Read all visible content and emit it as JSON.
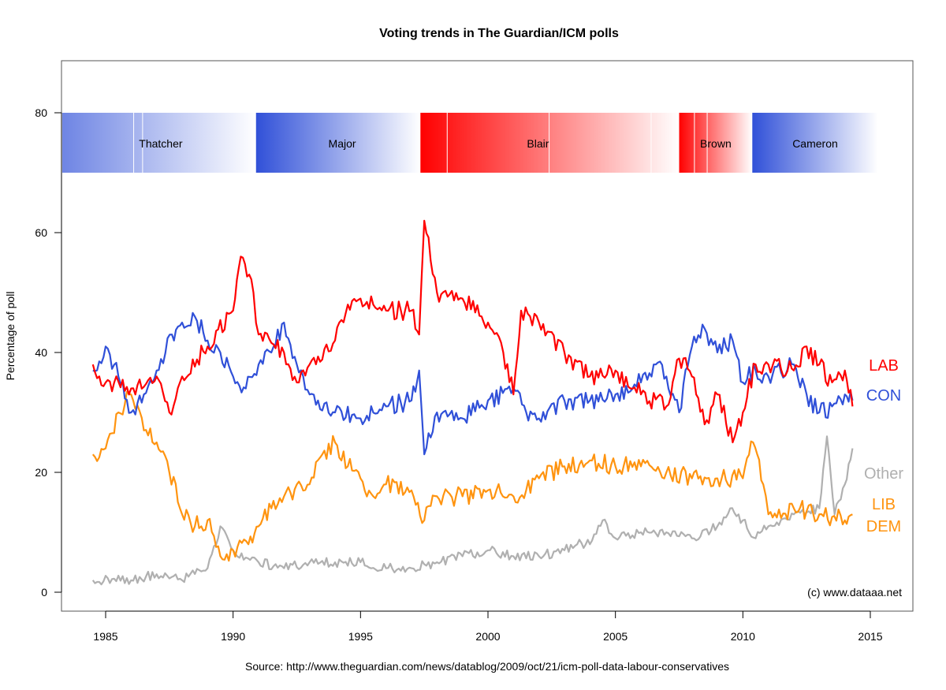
{
  "chart_data": {
    "type": "line",
    "title": "Voting trends in The Guardian/ICM polls",
    "xlabel": "",
    "ylabel": "Percentage of poll",
    "xlim": [
      1983.3,
      2016.7
    ],
    "ylim": [
      -3,
      88
    ],
    "x_ticks": [
      1985,
      1990,
      1995,
      2000,
      2005,
      2010,
      2015
    ],
    "y_ticks": [
      0,
      20,
      40,
      60,
      80
    ],
    "grid": false,
    "source": "Source: http://www.theguardian.com/news/datablog/2009/oct/21/icm-poll-data-labour-conservatives",
    "credit": "(c) www.dataaa.net",
    "pm_bands": [
      {
        "name": "Thatcher",
        "party": "CON",
        "start": 1983.3,
        "end": 1990.9,
        "fade_start": 0.6,
        "dividers": [
          1986.1,
          1986.45
        ]
      },
      {
        "name": "Major",
        "party": "CON",
        "start": 1990.9,
        "end": 1997.35,
        "fade_start": 1.0,
        "dividers": []
      },
      {
        "name": "Blair",
        "party": "LAB",
        "start": 1997.35,
        "end": 2007.5,
        "fade_start": 1.0,
        "dividers": [
          1998.4,
          2002.4,
          2006.4
        ]
      },
      {
        "name": "Brown",
        "party": "LAB",
        "start": 2007.5,
        "end": 2010.37,
        "fade_start": 1.0,
        "dividers": [
          2008.1,
          2008.6
        ]
      },
      {
        "name": "Cameron",
        "party": "CON",
        "start": 2010.37,
        "end": 2015.3,
        "fade_start": 1.0,
        "dividers": []
      }
    ],
    "band_range": [
      70,
      80
    ],
    "colors": {
      "LAB": "#ff0000",
      "CON": "#3050d8",
      "LIBDEM": "#ff9410",
      "Other": "#b0b0b0"
    },
    "series": [
      {
        "name": "LAB",
        "label": "LAB",
        "color": "#ff0000",
        "x": [
          1984.5,
          1985,
          1986,
          1987,
          1987.5,
          1988,
          1989,
          1990,
          1990.3,
          1990.8,
          1991,
          1992,
          1992.5,
          1993,
          1994,
          1994.5,
          1995,
          1996,
          1997,
          1997.3,
          1997.5,
          1998,
          1999,
          2000,
          2000.6,
          2001,
          2001.3,
          2002,
          2003,
          2004,
          2005,
          2006,
          2007,
          2007.5,
          2008,
          2008.5,
          2009,
          2009.6,
          2010,
          2010.5,
          2011,
          2012,
          2012.5,
          2013,
          2013.5,
          2014,
          2014.3
        ],
        "values": [
          38,
          35,
          34,
          36,
          30,
          36,
          41,
          47,
          56,
          50,
          43,
          40,
          35,
          38,
          42,
          48,
          49,
          47,
          47,
          43,
          62,
          50,
          49,
          45,
          40,
          33,
          47,
          45,
          40,
          36,
          37,
          33,
          31,
          39,
          36,
          28,
          33,
          25,
          30,
          38,
          38,
          37,
          41,
          38,
          35,
          37,
          31
        ]
      },
      {
        "name": "CON",
        "label": "CON",
        "color": "#3050d8",
        "x": [
          1984.5,
          1985,
          1985.5,
          1986,
          1986.5,
          1987,
          1987.6,
          1988,
          1988.5,
          1989,
          1989.5,
          1990,
          1990.5,
          1991,
          1991.5,
          1992,
          1992.5,
          1993,
          1994,
          1995,
          1996,
          1997,
          1997.3,
          1997.5,
          1998,
          1999,
          2000,
          2001,
          2001.5,
          2002,
          2003,
          2004,
          2005,
          2006,
          2006.5,
          2007,
          2007.5,
          2008,
          2008.5,
          2009,
          2009.6,
          2010,
          2010.5,
          2011,
          2012,
          2012.5,
          2013,
          2013.5,
          2014,
          2014.3
        ],
        "values": [
          37,
          41,
          36,
          30,
          33,
          37,
          43,
          45,
          46,
          42,
          40,
          36,
          34,
          38,
          40,
          45,
          38,
          33,
          30,
          29,
          31,
          32,
          37,
          23,
          30,
          29,
          32,
          34,
          30,
          29,
          32,
          32,
          33,
          35,
          38,
          36,
          30,
          41,
          44,
          40,
          42,
          35,
          37,
          36,
          38,
          33,
          30,
          31,
          33,
          32
        ]
      },
      {
        "name": "LIB DEM",
        "label": "LIB\nDEM",
        "color": "#ff9410",
        "x": [
          1984.5,
          1985,
          1985.5,
          1986,
          1986.5,
          1987,
          1987.5,
          1988,
          1988.5,
          1989,
          1989.5,
          1990,
          1990.6,
          1991,
          1991.5,
          1992,
          1993,
          1993.5,
          1994,
          1994.5,
          1995,
          1995.5,
          1996,
          1997,
          1997.5,
          1998,
          1999,
          2000,
          2001,
          2002,
          2003,
          2004,
          2005,
          2006,
          2007,
          2008,
          2009,
          2010,
          2010.4,
          2010.8,
          2011,
          2012,
          2013,
          2014,
          2014.3
        ],
        "values": [
          23,
          24,
          30,
          33,
          27,
          25,
          20,
          13,
          11,
          12,
          6,
          7,
          8,
          11,
          14,
          16,
          18,
          23,
          25,
          21,
          19,
          16,
          18,
          17,
          12,
          16,
          16,
          17,
          16,
          19,
          21,
          22,
          21,
          21,
          20,
          19,
          19,
          19,
          25,
          18,
          13,
          14,
          13,
          12,
          13
        ]
      },
      {
        "name": "Other",
        "label": "Other",
        "color": "#b0b0b0",
        "x": [
          1984.5,
          1986,
          1987,
          1988,
          1989,
          1989.5,
          1990,
          1991,
          1992,
          1993,
          1994,
          1995,
          1996,
          1997,
          1998,
          1999,
          2000,
          2001,
          2002,
          2003,
          2003.5,
          2004,
          2004.5,
          2005,
          2006,
          2007,
          2008,
          2009,
          2009.5,
          2010,
          2010.5,
          2011,
          2012,
          2013,
          2013.3,
          2013.6,
          2014,
          2014.3
        ],
        "values": [
          2,
          2,
          3,
          2,
          4,
          11,
          7,
          5,
          4,
          5,
          5,
          5,
          4,
          4,
          5,
          6,
          7,
          6,
          6,
          7,
          8,
          8,
          12,
          9,
          10,
          10,
          9,
          11,
          14,
          12,
          9,
          11,
          13,
          14,
          26,
          13,
          18,
          24
        ]
      }
    ]
  }
}
